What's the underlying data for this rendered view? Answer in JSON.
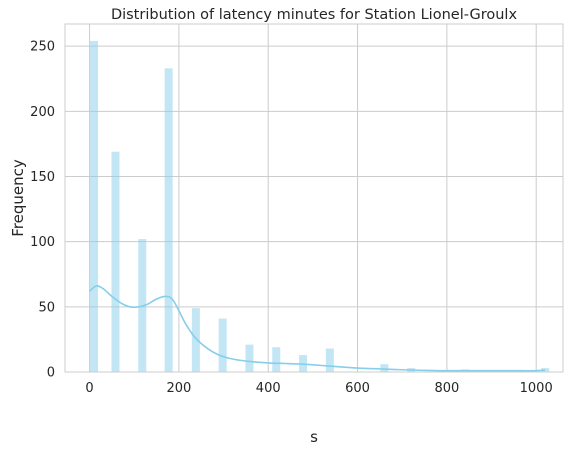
{
  "chart_data": {
    "type": "histogram",
    "title": "Distribution of latency minutes for Station Lionel-Groulx",
    "xlabel": "s",
    "ylabel": "Frequency",
    "xlim": [
      -55,
      1060
    ],
    "ylim": [
      0,
      267
    ],
    "xticks": [
      "0",
      "200",
      "400",
      "600",
      "800",
      "1000"
    ],
    "yticks": [
      "0",
      "50",
      "100",
      "150",
      "200",
      "250"
    ],
    "grid": true,
    "bar_color": "#87CEEB",
    "kde_color": "#87CEEB",
    "bins": [
      {
        "x": 0,
        "value": 0
      },
      {
        "x": 10,
        "value": 254
      },
      {
        "x": 58,
        "value": 169
      },
      {
        "x": 118,
        "value": 102
      },
      {
        "x": 177,
        "value": 233
      },
      {
        "x": 238,
        "value": 49
      },
      {
        "x": 298,
        "value": 41
      },
      {
        "x": 358,
        "value": 21
      },
      {
        "x": 418,
        "value": 19
      },
      {
        "x": 478,
        "value": 13
      },
      {
        "x": 538,
        "value": 18
      },
      {
        "x": 660,
        "value": 6
      },
      {
        "x": 720,
        "value": 3
      },
      {
        "x": 840,
        "value": 2
      },
      {
        "x": 1020,
        "value": 3
      }
    ],
    "kde": [
      [
        0,
        62
      ],
      [
        15,
        66
      ],
      [
        30,
        64
      ],
      [
        50,
        58
      ],
      [
        70,
        53
      ],
      [
        90,
        50
      ],
      [
        110,
        50
      ],
      [
        130,
        52
      ],
      [
        150,
        56
      ],
      [
        170,
        58
      ],
      [
        185,
        56
      ],
      [
        200,
        47
      ],
      [
        215,
        37
      ],
      [
        235,
        27
      ],
      [
        260,
        19
      ],
      [
        290,
        13
      ],
      [
        320,
        10
      ],
      [
        360,
        8
      ],
      [
        400,
        7
      ],
      [
        440,
        6.5
      ],
      [
        480,
        6
      ],
      [
        520,
        5
      ],
      [
        560,
        4
      ],
      [
        600,
        3
      ],
      [
        640,
        2.5
      ],
      [
        680,
        2
      ],
      [
        720,
        1.5
      ],
      [
        760,
        1.2
      ],
      [
        800,
        1
      ],
      [
        850,
        1
      ],
      [
        900,
        1
      ],
      [
        950,
        1
      ],
      [
        1000,
        1
      ],
      [
        1020,
        1.5
      ]
    ]
  }
}
